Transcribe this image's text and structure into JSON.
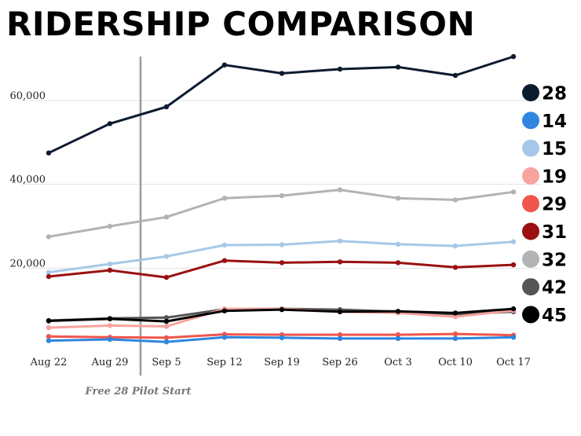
{
  "chart_data": {
    "type": "line",
    "title": "RIDERSHIP COMPARISON",
    "categories": [
      "Aug 22",
      "Aug 29",
      "Sep 5",
      "Sep 12",
      "Sep 19",
      "Sep 26",
      "Oct 3",
      "Oct 10",
      "Oct 17"
    ],
    "yticks": [
      "20,000",
      "40,000",
      "60,000"
    ],
    "ytick_values": [
      20000,
      40000,
      60000
    ],
    "ylim": [
      0,
      72500
    ],
    "grid": true,
    "legend_position": "right",
    "annotation": {
      "text": "Free 28 Pilot Start",
      "between": [
        "Aug 29",
        "Sep 5"
      ]
    },
    "series": [
      {
        "name": "32",
        "color": "#b3b3b3",
        "values": [
          27500,
          30000,
          32200,
          36700,
          37300,
          38700,
          36700,
          36300,
          38200
        ]
      },
      {
        "name": "15",
        "color": "#a6c8e8",
        "values": [
          19000,
          21000,
          22800,
          25500,
          25600,
          26500,
          25700,
          25300,
          26300
        ]
      },
      {
        "name": "31",
        "color": "#9b1010",
        "values": [
          18000,
          19500,
          17800,
          21800,
          21300,
          21500,
          21300,
          20200,
          20800
        ]
      },
      {
        "name": "42",
        "color": "#555555",
        "values": [
          7500,
          8000,
          8200,
          10200,
          10300,
          10100,
          9600,
          9000,
          9600
        ]
      },
      {
        "name": "19",
        "color": "#f7a39e",
        "values": [
          5800,
          6300,
          6100,
          10300,
          10300,
          9600,
          9300,
          8400,
          9900
        ]
      },
      {
        "name": "45",
        "color": "#000000",
        "values": [
          7400,
          7900,
          7300,
          9800,
          10100,
          9600,
          9700,
          9300,
          10300
        ]
      },
      {
        "name": "29",
        "color": "#f0554c",
        "values": [
          3700,
          3500,
          3400,
          4200,
          4100,
          4100,
          4100,
          4300,
          4000
        ]
      },
      {
        "name": "14",
        "color": "#2e86de",
        "values": [
          2700,
          3000,
          2400,
          3500,
          3400,
          3200,
          3200,
          3200,
          3500
        ]
      },
      {
        "name": "28",
        "color": "#0c1b2e",
        "values": [
          47500,
          54500,
          58500,
          68500,
          66500,
          67500,
          68000,
          66000,
          70500
        ]
      }
    ],
    "legend_order": [
      "28",
      "14",
      "15",
      "19",
      "29",
      "31",
      "32",
      "42",
      "45"
    ]
  }
}
